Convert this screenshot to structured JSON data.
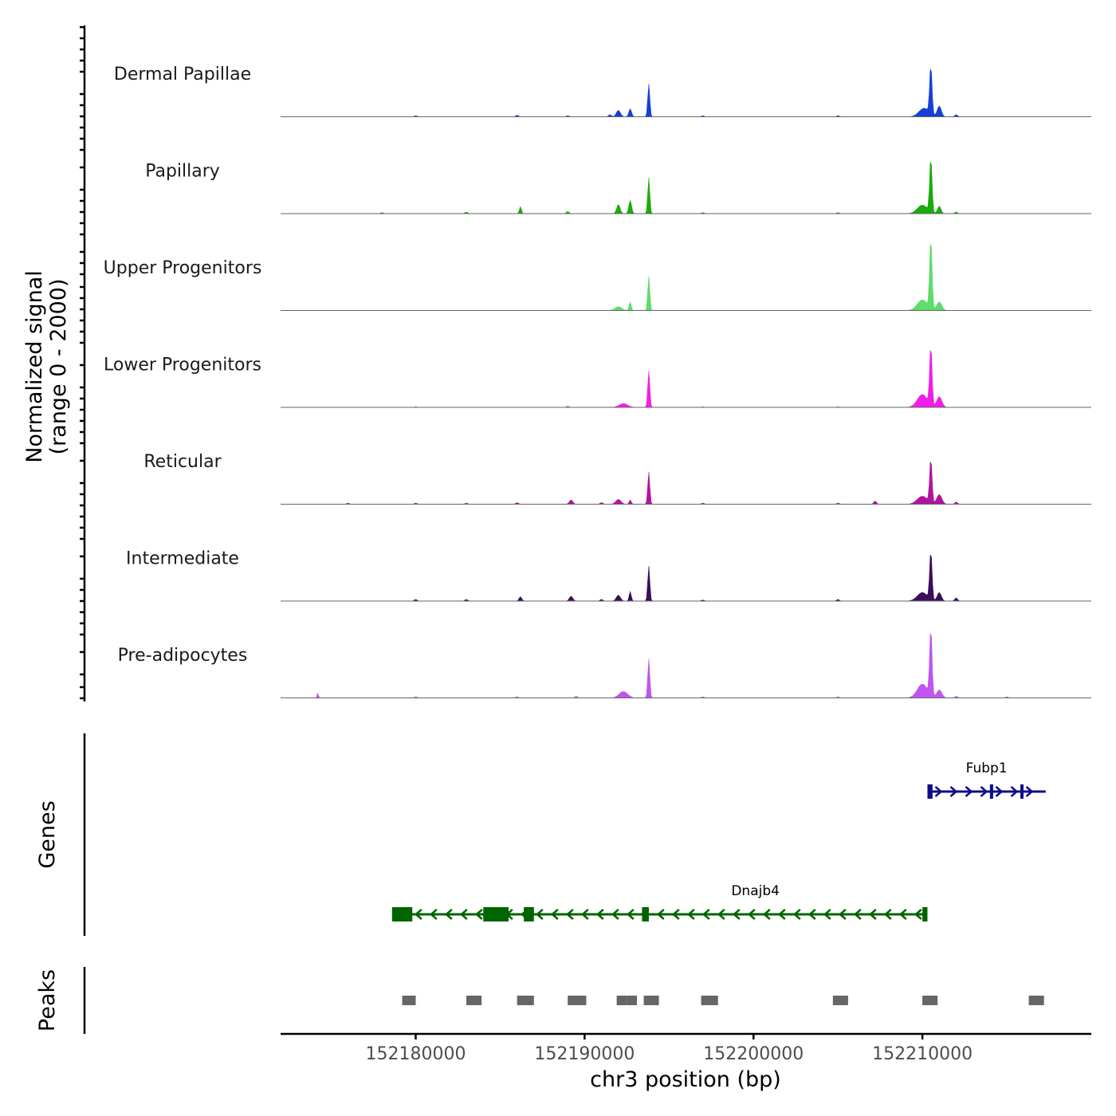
{
  "chart_data": {
    "type": "area",
    "chromosome": "chr3",
    "xlabel": "chr3 position (bp)",
    "xlim": [
      152172000,
      152220000
    ],
    "xticks": [
      152180000,
      152190000,
      152200000,
      152210000
    ],
    "ylabel_line1": "Normalized signal",
    "ylabel_line2": "(range 0 - 2000)",
    "ylim": [
      0,
      2000
    ],
    "baseline_color": "#666666",
    "tracks": [
      {
        "name": "Dermal Papillae",
        "color": "#1440d6",
        "peaks": [
          [
            152192000,
            120,
            120
          ],
          [
            152192700,
            150,
            80
          ],
          [
            152193800,
            620,
            60
          ],
          [
            152210500,
            910,
            70
          ],
          [
            152210100,
            160,
            300
          ],
          [
            152211000,
            200,
            120
          ]
        ],
        "noise": [
          [
            152180000,
            20
          ],
          [
            152186000,
            30
          ],
          [
            152189000,
            20
          ],
          [
            152191500,
            40
          ],
          [
            152197000,
            20
          ],
          [
            152205000,
            20
          ],
          [
            152212000,
            40
          ]
        ]
      },
      {
        "name": "Papillary",
        "color": "#1aab0a",
        "peaks": [
          [
            152186200,
            130,
            60
          ],
          [
            152192000,
            170,
            100
          ],
          [
            152192700,
            250,
            80
          ],
          [
            152193800,
            680,
            60
          ],
          [
            152210500,
            1020,
            70
          ],
          [
            152210000,
            160,
            300
          ],
          [
            152211000,
            140,
            100
          ]
        ],
        "noise": [
          [
            152178000,
            20
          ],
          [
            152183000,
            30
          ],
          [
            152189000,
            40
          ],
          [
            152197000,
            20
          ],
          [
            152205000,
            20
          ],
          [
            152212000,
            30
          ]
        ]
      },
      {
        "name": "Upper Progenitors",
        "color": "#5edc6c",
        "peaks": [
          [
            152192000,
            70,
            200
          ],
          [
            152192700,
            160,
            60
          ],
          [
            152193800,
            650,
            60
          ],
          [
            152210500,
            1320,
            70
          ],
          [
            152210000,
            200,
            300
          ],
          [
            152211000,
            160,
            150
          ]
        ],
        "noise": []
      },
      {
        "name": "Lower Progenitors",
        "color": "#f21de6",
        "peaks": [
          [
            152192300,
            70,
            250
          ],
          [
            152193800,
            690,
            60
          ],
          [
            152210500,
            1110,
            70
          ],
          [
            152210000,
            240,
            300
          ],
          [
            152211000,
            200,
            150
          ]
        ],
        "noise": [
          [
            152180000,
            10
          ],
          [
            152189000,
            20
          ],
          [
            152197000,
            10
          ],
          [
            152205000,
            10
          ]
        ]
      },
      {
        "name": "Reticular",
        "color": "#b0149e",
        "peaks": [
          [
            152189200,
            80,
            100
          ],
          [
            152192000,
            90,
            150
          ],
          [
            152192700,
            80,
            60
          ],
          [
            152193800,
            610,
            60
          ],
          [
            152210500,
            830,
            70
          ],
          [
            152210000,
            150,
            300
          ],
          [
            152211000,
            180,
            150
          ]
        ],
        "noise": [
          [
            152176000,
            20
          ],
          [
            152180000,
            20
          ],
          [
            152183000,
            20
          ],
          [
            152186000,
            30
          ],
          [
            152191000,
            30
          ],
          [
            152197000,
            20
          ],
          [
            152205000,
            20
          ],
          [
            152207200,
            60
          ],
          [
            152212000,
            40
          ]
        ]
      },
      {
        "name": "Intermediate",
        "color": "#3b0d5c",
        "peaks": [
          [
            152189200,
            90,
            100
          ],
          [
            152192000,
            110,
            120
          ],
          [
            152192700,
            180,
            60
          ],
          [
            152193800,
            660,
            60
          ],
          [
            152210500,
            910,
            70
          ],
          [
            152210000,
            160,
            300
          ],
          [
            152211000,
            160,
            120
          ]
        ],
        "noise": [
          [
            152180000,
            30
          ],
          [
            152183000,
            30
          ],
          [
            152186200,
            80
          ],
          [
            152191000,
            30
          ],
          [
            152197000,
            20
          ],
          [
            152205000,
            30
          ],
          [
            152212000,
            60
          ]
        ]
      },
      {
        "name": "Pre-adipocytes",
        "color": "#c055f0",
        "peaks": [
          [
            152174200,
            90,
            40
          ],
          [
            152192300,
            120,
            250
          ],
          [
            152193800,
            740,
            60
          ],
          [
            152210500,
            1260,
            70
          ],
          [
            152210000,
            260,
            300
          ],
          [
            152211000,
            150,
            150
          ]
        ],
        "noise": [
          [
            152180000,
            20
          ],
          [
            152186000,
            20
          ],
          [
            152189500,
            30
          ],
          [
            152197000,
            20
          ],
          [
            152205000,
            20
          ],
          [
            152212000,
            30
          ],
          [
            152215000,
            20
          ]
        ]
      }
    ],
    "genes_label": "Genes",
    "genes": [
      {
        "name": "Fubp1",
        "color": "#0d0d8c",
        "start": 152210300,
        "end": 152217300,
        "strand": "+",
        "exons": [
          [
            152210300,
            152210600
          ],
          [
            152214000,
            152214150
          ],
          [
            152215800,
            152215900
          ]
        ]
      },
      {
        "name": "Dnajb4",
        "color": "#006400",
        "start": 152178600,
        "end": 152210300,
        "strand": "-",
        "exons": [
          [
            152178600,
            152179800
          ],
          [
            152184000,
            152185500
          ],
          [
            152186400,
            152187000
          ],
          [
            152193400,
            152193800
          ],
          [
            152210000,
            152210300
          ]
        ]
      }
    ],
    "peaks_label": "Peaks",
    "peaks_color": "#666666",
    "peak_regions": [
      [
        152179200,
        152180000
      ],
      [
        152183000,
        152183900
      ],
      [
        152186000,
        152187000
      ],
      [
        152189000,
        152190100
      ],
      [
        152191900,
        152192500
      ],
      [
        152192500,
        152193100
      ],
      [
        152193500,
        152194400
      ],
      [
        152196900,
        152197900
      ],
      [
        152204700,
        152205600
      ],
      [
        152210000,
        152210900
      ],
      [
        152216300,
        152217200
      ]
    ]
  }
}
